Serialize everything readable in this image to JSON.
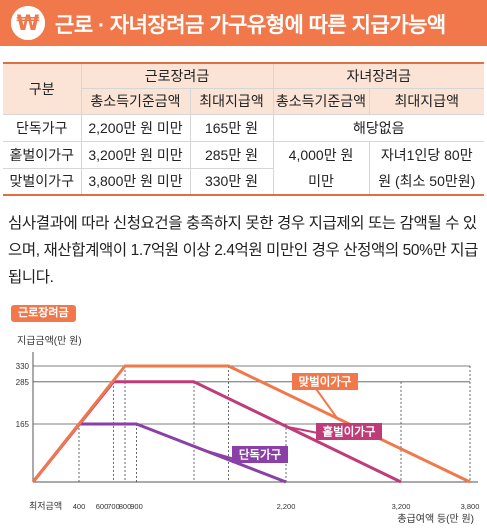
{
  "header": {
    "badge_symbol": "₩",
    "title": "근로 · 자녀장려금 가구유형에 따른 지급가능액"
  },
  "table": {
    "col_group": "구분",
    "eitc_label": "근로장려금",
    "ctc_label": "자녀장려금",
    "sub_headers": [
      "총소득기준금액",
      "최대지급액",
      "총소득기준금액",
      "최대지급액"
    ],
    "rows": [
      {
        "type": "단독가구",
        "eitc_income": "2,200만 원 미만",
        "eitc_max": "165만 원"
      },
      {
        "type": "홑벌이가구",
        "eitc_income": "3,200만 원 미만",
        "eitc_max": "285만 원"
      },
      {
        "type": "맞벌이가구",
        "eitc_income": "3,800만 원 미만",
        "eitc_max": "330만 원"
      }
    ],
    "ctc_single": "해당없음",
    "ctc_income": "4,000만 원 미만",
    "ctc_max": "자녀1인당 80만원 (최소 50만원)"
  },
  "note": "심사결과에 따라 신청요건을 충족하지 못한 경우 지급제외 또는 감액될 수 있으며, 재산합계액이 1.7억원 이상 2.4억원 미만인 경우 산정액의 50%만 지급됩니다.",
  "chart_tag": "근로장려금",
  "chart_data": {
    "type": "line",
    "ylabel": "지급금액(만 원)",
    "xlabel": "총급여액 등(만 원)",
    "x_origin_label": "최저금액",
    "x_ticks": [
      400,
      600,
      700,
      800,
      900,
      2200,
      3200,
      3800
    ],
    "y_ticks": [
      165,
      285,
      330
    ],
    "xlim": [
      0,
      3800
    ],
    "ylim": [
      0,
      330
    ],
    "series": [
      {
        "name": "맞벌이가구",
        "color": "#f0784a",
        "x": [
          0,
          800,
          1700,
          3800
        ],
        "y": [
          0,
          330,
          330,
          0
        ]
      },
      {
        "name": "홑벌이가구",
        "color": "#c03c78",
        "x": [
          0,
          700,
          1400,
          3200
        ],
        "y": [
          0,
          285,
          285,
          0
        ]
      },
      {
        "name": "단독가구",
        "color": "#8a40a6",
        "x": [
          0,
          400,
          900,
          2200
        ],
        "y": [
          0,
          165,
          165,
          0
        ]
      }
    ]
  }
}
